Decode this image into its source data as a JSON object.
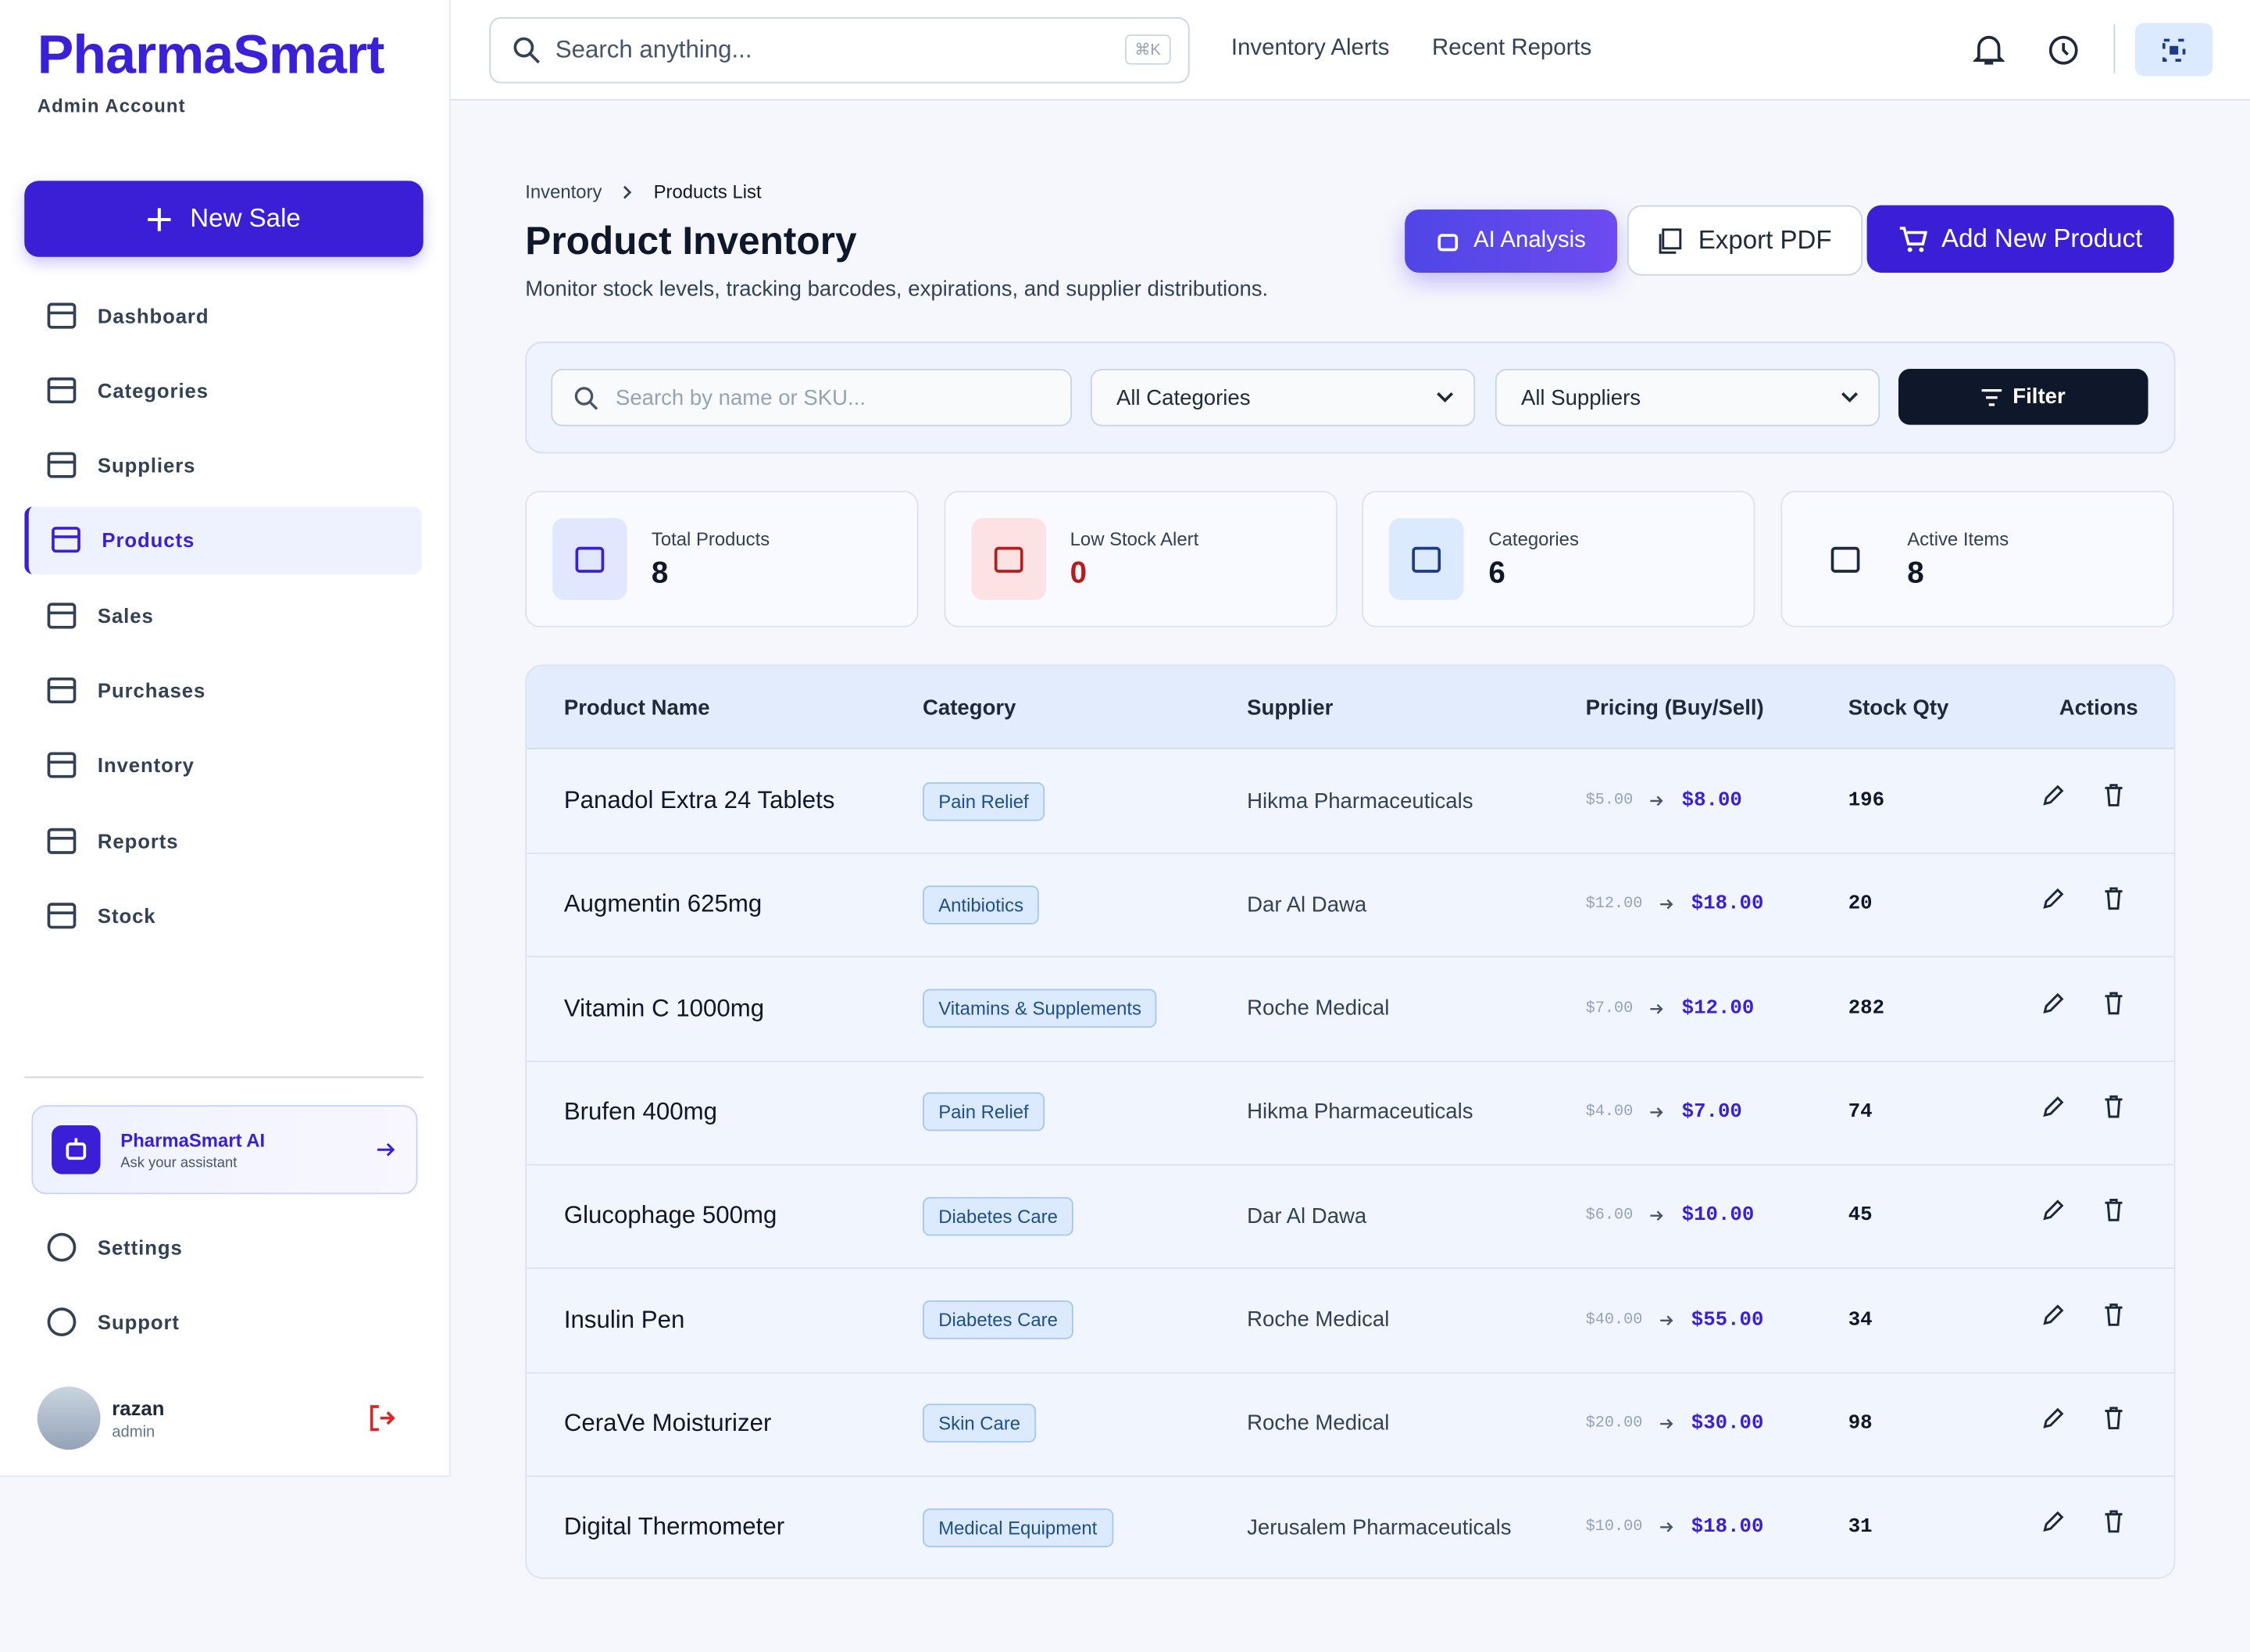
{
  "brand": {
    "name": "PharmaSmart",
    "subtitle": "Admin Account"
  },
  "sidebar": {
    "new_sale": "New Sale",
    "nav": [
      {
        "label": "Dashboard"
      },
      {
        "label": "Categories"
      },
      {
        "label": "Suppliers"
      },
      {
        "label": "Products",
        "active": true
      },
      {
        "label": "Sales"
      },
      {
        "label": "Purchases"
      },
      {
        "label": "Inventory"
      },
      {
        "label": "Reports"
      },
      {
        "label": "Stock"
      }
    ],
    "footer_nav": [
      "Settings",
      "Support"
    ]
  },
  "assistant": {
    "title": "PharmaSmart AI",
    "subtitle": "Ask your assistant"
  },
  "user": {
    "name": "razan",
    "role": "admin"
  },
  "topbar": {
    "search_placeholder": "Search anything...",
    "shortcut": "⌘K",
    "links": [
      "Inventory Alerts",
      "Recent Reports"
    ]
  },
  "breadcrumb": [
    "Inventory",
    "Products List"
  ],
  "page": {
    "title": "Product Inventory",
    "subtitle": "Monitor stock levels, tracking barcodes, expirations, and supplier distributions."
  },
  "actions": [
    "AI Analysis",
    "Export PDF",
    "Add New Product"
  ],
  "filters": {
    "search_placeholder": "Search by name or SKU...",
    "category": "All Categories",
    "supplier": "All Suppliers",
    "button": "Filter"
  },
  "stats": [
    {
      "label": "Total Products",
      "value": 8
    },
    {
      "label": "Low Stock Alert",
      "value": 0
    },
    {
      "label": "Categories",
      "value": 6
    },
    {
      "label": "Active Items",
      "value": 8
    }
  ],
  "table": {
    "columns": [
      "Product Name",
      "Category",
      "Supplier",
      "Pricing (Buy/Sell)",
      "Stock Qty",
      "Actions"
    ],
    "rows": [
      [
        "Panadol Extra 24 Tablets",
        "Pain Relief",
        "Hikma Pharmaceuticals",
        "$5.00",
        "$8.00",
        196
      ],
      [
        "Augmentin 625mg",
        "Antibiotics",
        "Dar Al Dawa",
        "$12.00",
        "$18.00",
        20
      ],
      [
        "Vitamin C 1000mg",
        "Vitamins & Supplements",
        "Roche Medical",
        "$7.00",
        "$12.00",
        282
      ],
      [
        "Brufen 400mg",
        "Pain Relief",
        "Hikma Pharmaceuticals",
        "$4.00",
        "$7.00",
        74
      ],
      [
        "Glucophage 500mg",
        "Diabetes Care",
        "Dar Al Dawa",
        "$6.00",
        "$10.00",
        45
      ],
      [
        "Insulin Pen",
        "Diabetes Care",
        "Roche Medical",
        "$40.00",
        "$55.00",
        34
      ],
      [
        "CeraVe Moisturizer",
        "Skin Care",
        "Roche Medical",
        "$20.00",
        "$30.00",
        98
      ],
      [
        "Digital Thermometer",
        "Medical Equipment",
        "Jerusalem Pharmaceuticals",
        "$10.00",
        "$18.00",
        31
      ]
    ]
  }
}
